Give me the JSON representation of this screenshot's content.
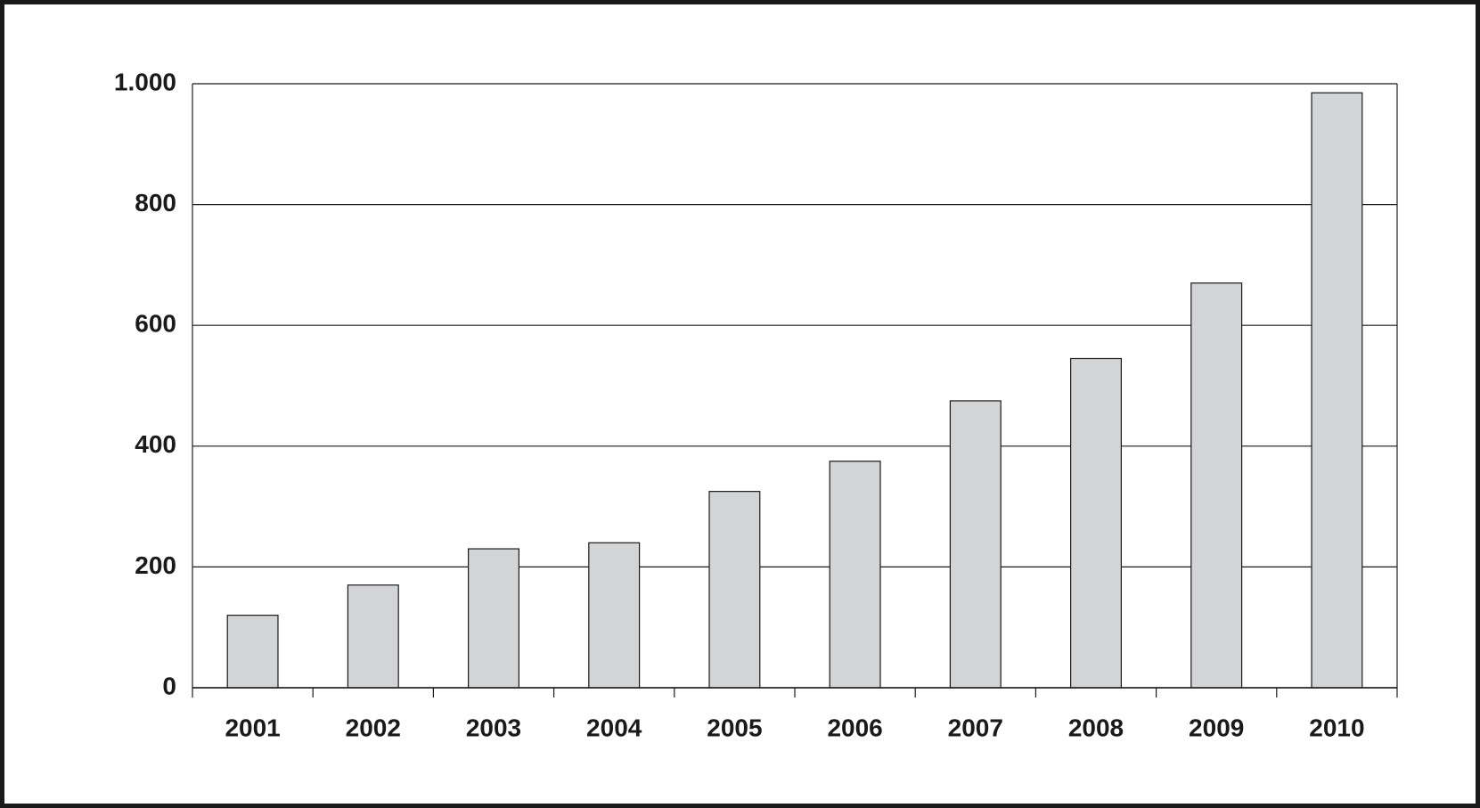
{
  "chart_data": {
    "type": "bar",
    "categories": [
      "2001",
      "2002",
      "2003",
      "2004",
      "2005",
      "2006",
      "2007",
      "2008",
      "2009",
      "2010"
    ],
    "values": [
      120,
      170,
      230,
      240,
      325,
      375,
      475,
      545,
      670,
      985
    ],
    "color": "#d3d4d6",
    "ylim": [
      0,
      1000
    ],
    "yticks": [
      0,
      200,
      400,
      600,
      800,
      {
        "value": 1000,
        "label": "1.000"
      }
    ],
    "grid": true
  }
}
